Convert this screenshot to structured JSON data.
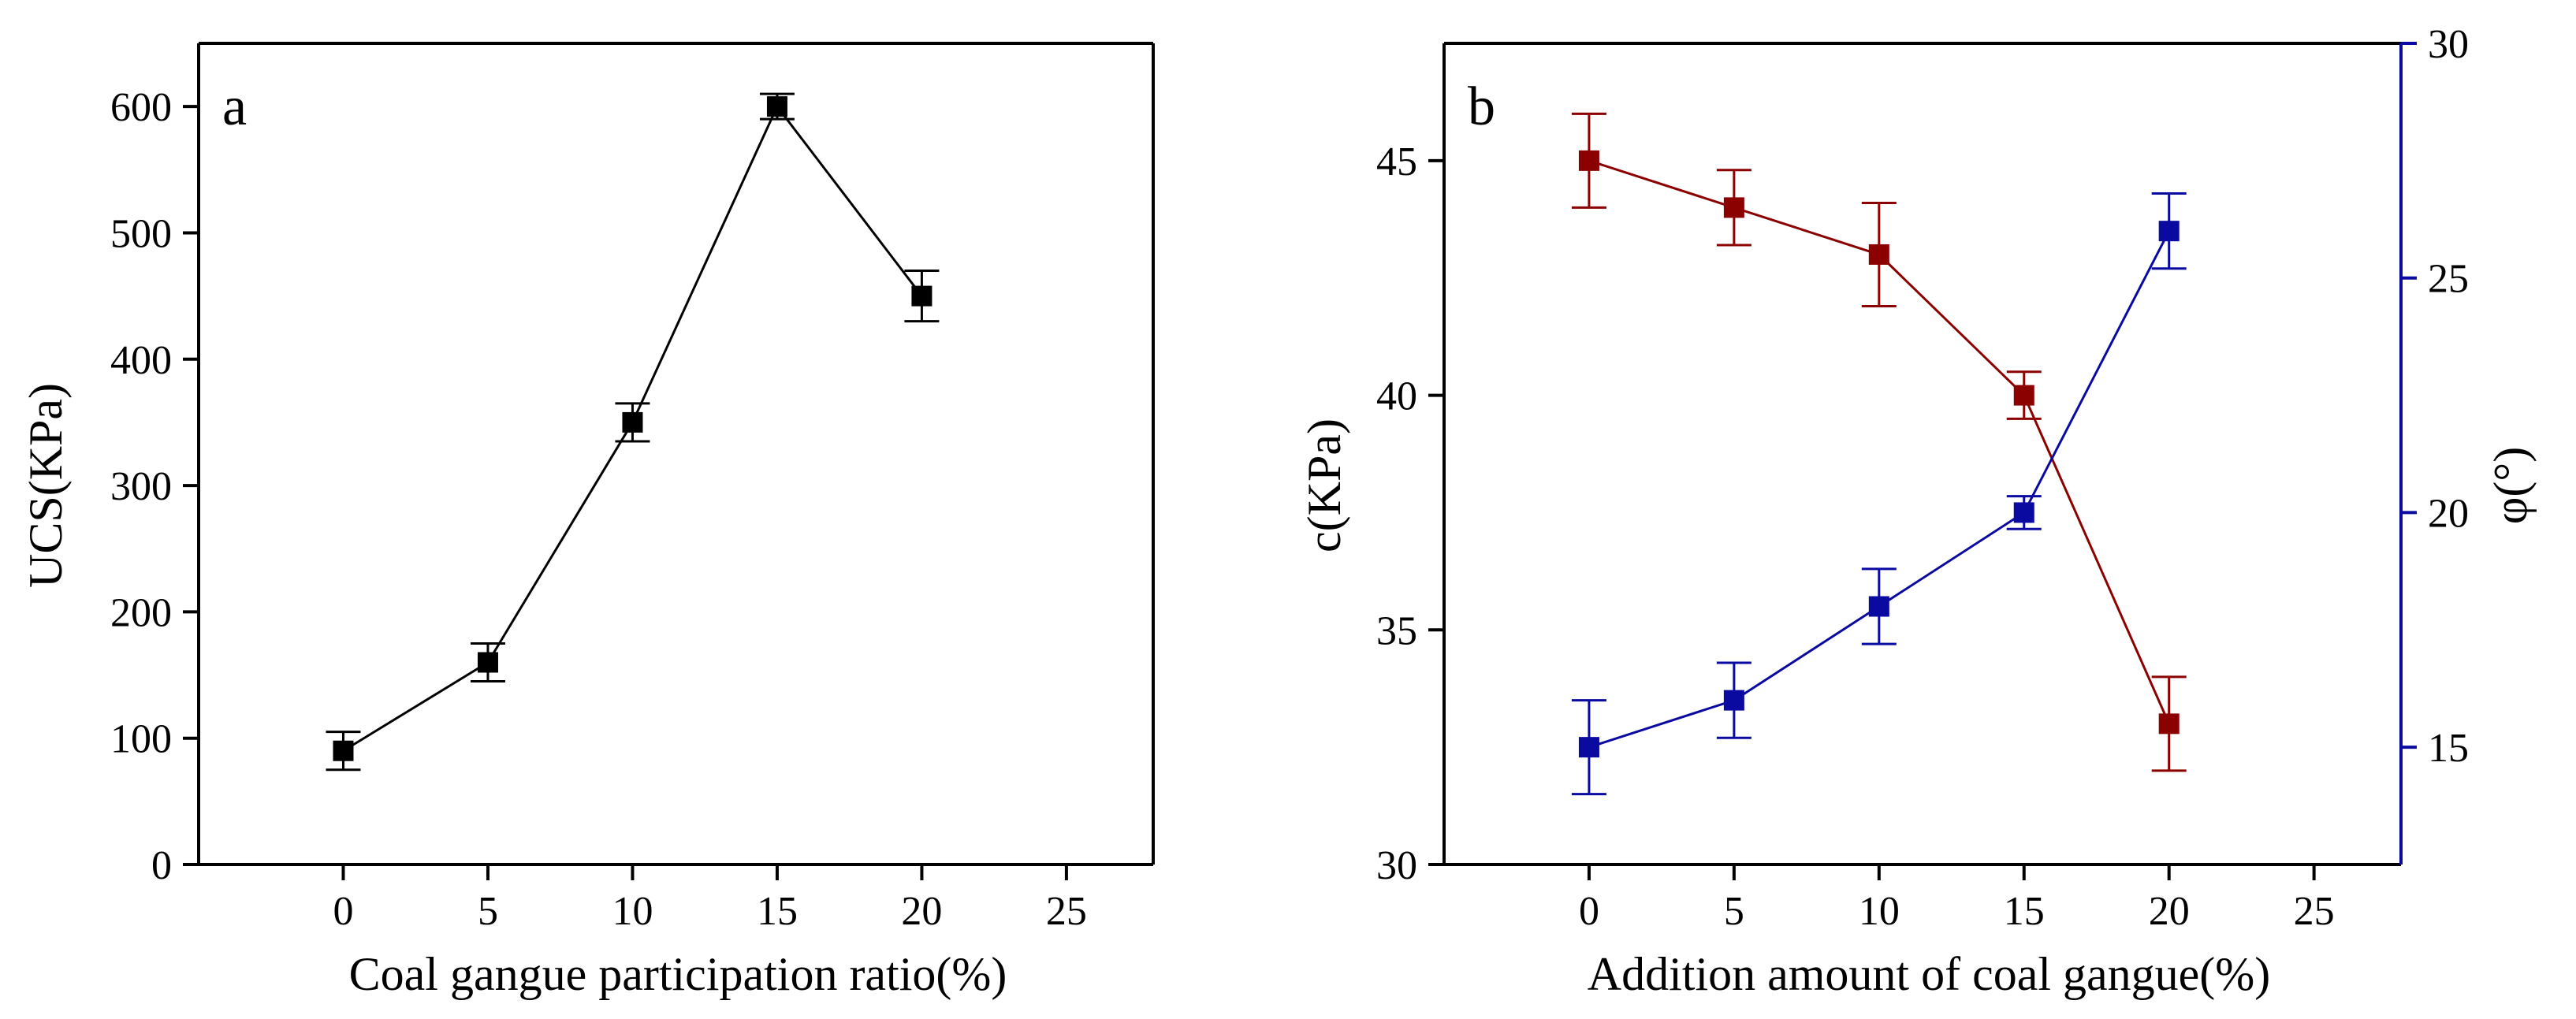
{
  "chart_data": [
    {
      "panel": "a",
      "type": "line",
      "xlabel": "Coal gangue participation ratio(%)",
      "ylabel": "UCS(KPa)",
      "xlim": [
        -5,
        28
      ],
      "ylim": [
        0,
        650
      ],
      "xticks": [
        0,
        5,
        10,
        15,
        20,
        25
      ],
      "yticks": [
        0,
        100,
        200,
        300,
        400,
        500,
        600
      ],
      "x": [
        0,
        5,
        10,
        15,
        20
      ],
      "series": [
        {
          "name": "UCS",
          "axis": "left",
          "color": "#000000",
          "values": [
            90,
            160,
            350,
            600,
            450
          ],
          "errors": [
            15,
            15,
            15,
            10,
            20
          ]
        }
      ]
    },
    {
      "panel": "b",
      "type": "line",
      "xlabel": "Addition amount of coal gangue(%)",
      "ylabel": "c(KPa)",
      "ylabel_right": "φ(°)",
      "xlim": [
        -5,
        28
      ],
      "ylim": [
        30,
        47.5
      ],
      "ylim_right": [
        12.5,
        30
      ],
      "xticks": [
        0,
        5,
        10,
        15,
        20,
        25
      ],
      "yticks": [
        30,
        35,
        40,
        45
      ],
      "yticks_right": [
        15,
        20,
        25,
        30
      ],
      "x": [
        0,
        5,
        10,
        15,
        20
      ],
      "series": [
        {
          "name": "c",
          "axis": "left",
          "color": "#8b0000",
          "values": [
            45,
            44,
            43,
            40,
            33
          ],
          "errors": [
            1.0,
            0.8,
            1.1,
            0.5,
            1.0
          ]
        },
        {
          "name": "φ",
          "axis": "right",
          "color": "#0a0aa0",
          "values": [
            15,
            16,
            18,
            20,
            26
          ],
          "errors": [
            1.0,
            0.8,
            0.8,
            0.35,
            0.8
          ]
        }
      ]
    }
  ]
}
